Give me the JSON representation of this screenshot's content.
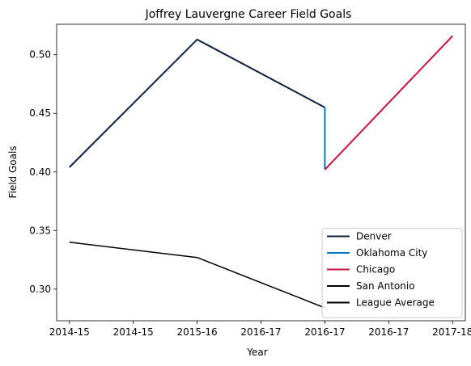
{
  "chart_data": {
    "type": "line",
    "title": "Joffrey Lauvergne Career Field Goals",
    "xlabel": "Year",
    "ylabel": "Field Goals",
    "x_tick_labels": [
      "2014-15",
      "2014-15",
      "2015-16",
      "2016-17",
      "2016-17",
      "2016-17",
      "2017-18"
    ],
    "x_tick_positions": [
      2014.0,
      2014.5,
      2015.0,
      2015.5,
      2016.0,
      2016.5,
      2017.0
    ],
    "xlim": [
      2013.9,
      2017.1
    ],
    "y_ticks": [
      0.3,
      0.35,
      0.4,
      0.45,
      0.5
    ],
    "y_tick_labels": [
      "0.30",
      "0.35",
      "0.40",
      "0.45",
      "0.50"
    ],
    "ylim": [
      0.273,
      0.526
    ],
    "series": [
      {
        "name": "Denver",
        "color": "#0e2240",
        "x": [
          2014.0,
          2015.0,
          2016.0
        ],
        "y": [
          0.404,
          0.513,
          0.455
        ]
      },
      {
        "name": "Oklahoma City",
        "color": "#007ac1",
        "x": [
          2016.0,
          2016.0
        ],
        "y": [
          0.455,
          0.402
        ]
      },
      {
        "name": "Chicago",
        "color": "#ce1141",
        "x": [
          2016.0,
          2017.0
        ],
        "y": [
          0.402,
          0.516
        ]
      },
      {
        "name": "San Antonio",
        "color": "#000000",
        "x": [],
        "y": []
      },
      {
        "name": "League Average",
        "color": "#000000",
        "x": [
          2014.0,
          2015.0,
          2016.0
        ],
        "y": [
          0.34,
          0.327,
          0.284
        ]
      }
    ],
    "legend_position": "lower right",
    "grid": false
  }
}
